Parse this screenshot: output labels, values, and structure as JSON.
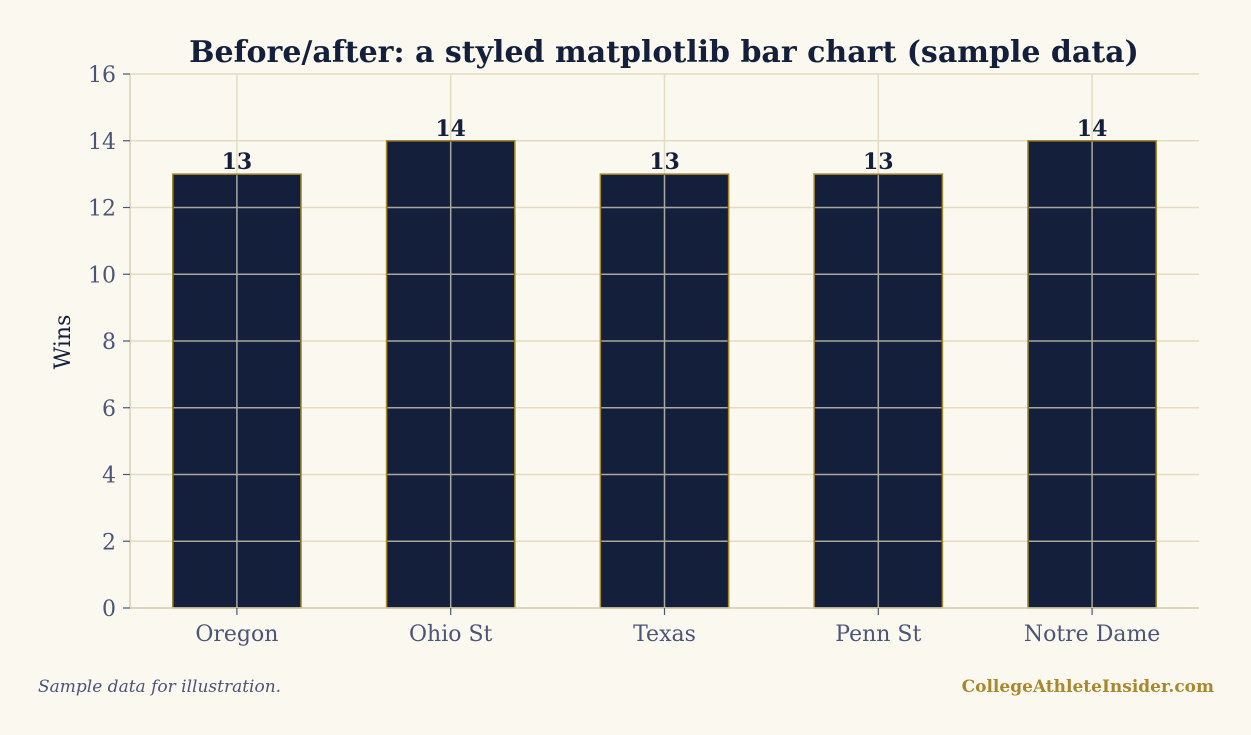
{
  "chart_data": {
    "type": "bar",
    "title": "Before/after: a styled matplotlib bar chart (sample data)",
    "xlabel": "",
    "ylabel": "Wins",
    "categories": [
      "Oregon",
      "Ohio St",
      "Texas",
      "Penn St",
      "Notre Dame"
    ],
    "values": [
      13,
      14,
      13,
      13,
      14
    ],
    "ylim": [
      0,
      16
    ],
    "yticks": [
      0,
      2,
      4,
      6,
      8,
      10,
      12,
      14,
      16
    ],
    "grid": true,
    "legend": "none",
    "colors": {
      "bar_fill": "#14203b",
      "bar_edge": "#a8882e",
      "grid": "#e4dcc0",
      "inner_grid": "#aaa89e",
      "tick_text": "#4a5577",
      "title_text": "#14203b",
      "background": "#fbf8ef"
    }
  },
  "footer": {
    "note": "Sample data for illustration.",
    "brand": "CollegeAthleteInsider.com"
  }
}
